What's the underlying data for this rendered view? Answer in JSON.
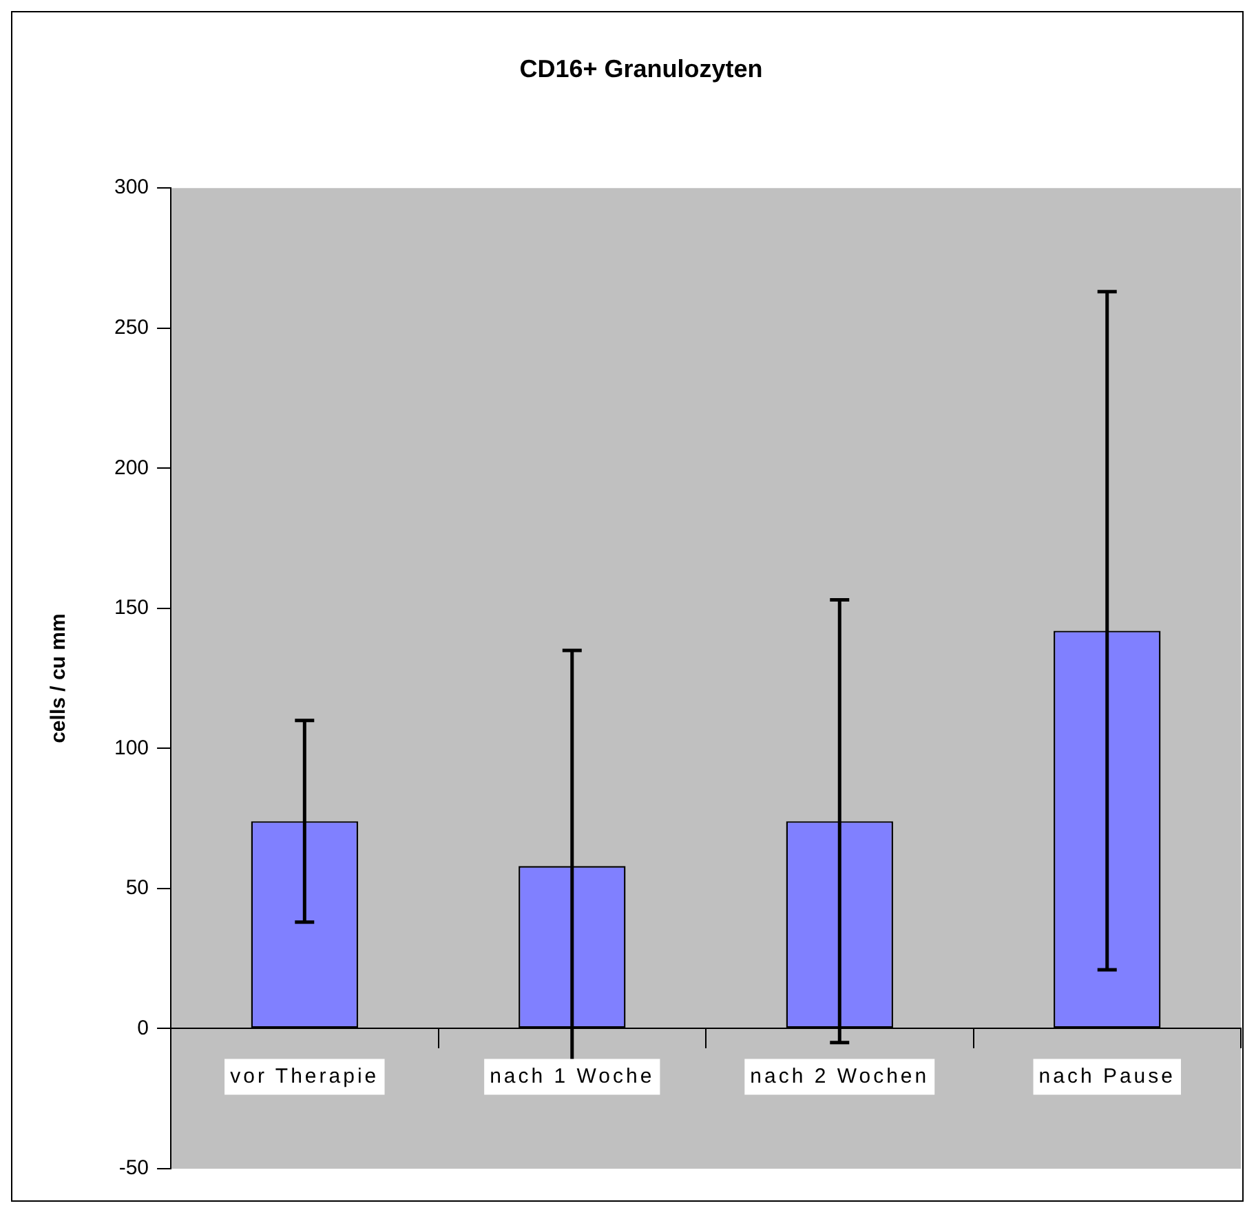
{
  "chart_data": {
    "type": "bar",
    "title": "CD16+ Granulozyten",
    "ylabel": "cells / cu mm",
    "categories": [
      "vor Therapie",
      "nach 1 Woche",
      "nach 2 Wochen",
      "nach Pause"
    ],
    "values": [
      74,
      58,
      74,
      142
    ],
    "errors": [
      36,
      77,
      79,
      121
    ],
    "color": "#8080ff",
    "ylim": [
      -50,
      300
    ],
    "yticks": [
      -50,
      0,
      50,
      100,
      150,
      200,
      250,
      300
    ],
    "grid": false,
    "legend": false
  }
}
